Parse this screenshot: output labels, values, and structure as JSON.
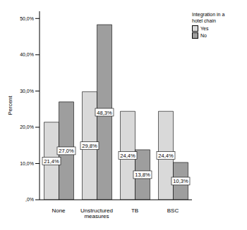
{
  "chart_data": {
    "type": "bar",
    "y_label": "Percent",
    "legend_title": "Integration in a hotel chain",
    "categories": [
      "None",
      "Unstructured measures",
      "TB",
      "BSC"
    ],
    "series": [
      {
        "name": "Yes",
        "color": "#d9d9d9",
        "values": [
          21.4,
          29.8,
          24.4,
          24.4
        ],
        "value_labels": [
          "21,4%",
          "29,8%",
          "24,4%",
          "24,4%"
        ]
      },
      {
        "name": "No",
        "color": "#9e9e9e",
        "values": [
          27.0,
          48.3,
          13.8,
          10.3
        ],
        "value_labels": [
          "27,0%",
          "48,3%",
          "13,8%",
          "10,3%"
        ]
      }
    ],
    "ylim": [
      0,
      52
    ],
    "yticks": [
      {
        "value": 0,
        "label": ",0%"
      },
      {
        "value": 10,
        "label": "10,0%"
      },
      {
        "value": 20,
        "label": "20,0%"
      },
      {
        "value": 30,
        "label": "30,0%"
      },
      {
        "value": 40,
        "label": "40,0%"
      },
      {
        "value": 50,
        "label": "50,0%"
      }
    ],
    "grid": false,
    "data_labels": true,
    "legend": "right"
  }
}
